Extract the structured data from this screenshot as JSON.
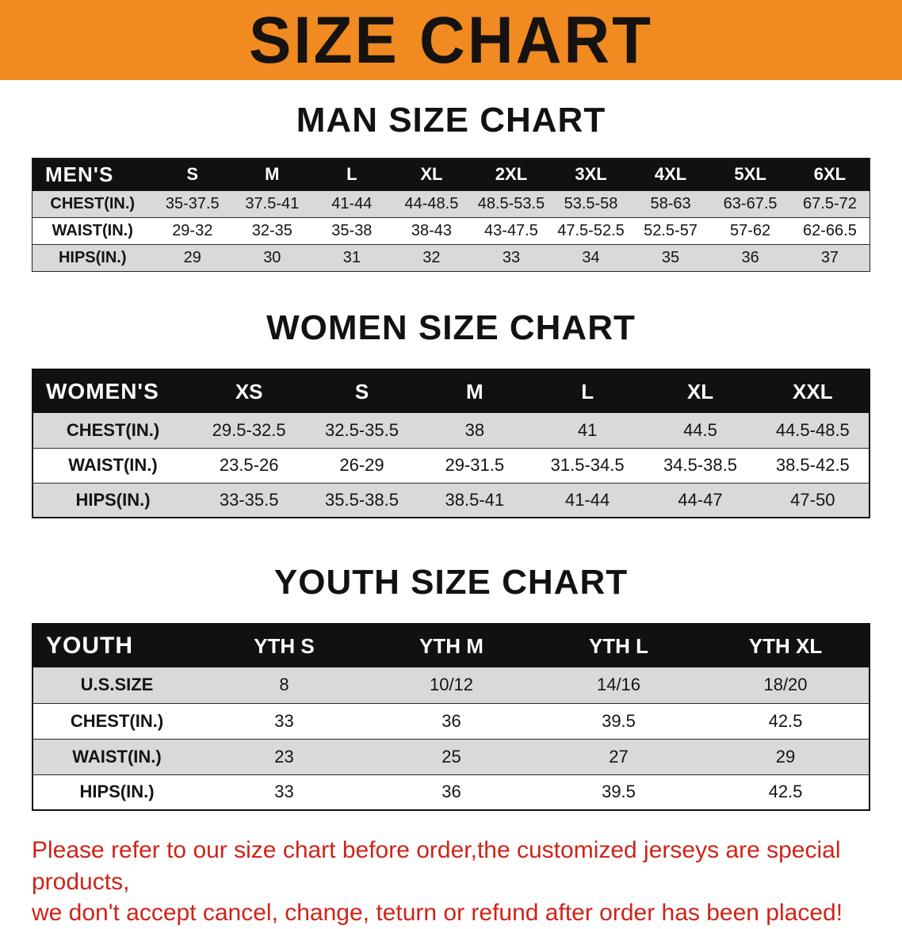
{
  "colors": {
    "banner_bg": "#F08A21",
    "banner_text": "#161210",
    "table_header_bg": "#111111",
    "table_header_text": "#ffffff",
    "stripe_bg": "#d9d9d9",
    "disclaimer_text": "#d02318"
  },
  "banner": {
    "title": "SIZE CHART"
  },
  "sections": [
    {
      "heading": "MAN SIZE CHART",
      "header_label": "MEN'S",
      "columns": [
        "S",
        "M",
        "L",
        "XL",
        "2XL",
        "3XL",
        "4XL",
        "5XL",
        "6XL"
      ],
      "rows": [
        {
          "label": "CHEST(IN.)",
          "values": [
            "35-37.5",
            "37.5-41",
            "41-44",
            "44-48.5",
            "48.5-53.5",
            "53.5-58",
            "58-63",
            "63-67.5",
            "67.5-72"
          ]
        },
        {
          "label": "WAIST(IN.)",
          "values": [
            "29-32",
            "32-35",
            "35-38",
            "38-43",
            "43-47.5",
            "47.5-52.5",
            "52.5-57",
            "57-62",
            "62-66.5"
          ]
        },
        {
          "label": "HIPS(IN.)",
          "values": [
            "29",
            "30",
            "31",
            "32",
            "33",
            "34",
            "35",
            "36",
            "37"
          ]
        }
      ]
    },
    {
      "heading": "WOMEN SIZE CHART",
      "header_label": "WOMEN'S",
      "columns": [
        "XS",
        "S",
        "M",
        "L",
        "XL",
        "XXL"
      ],
      "rows": [
        {
          "label": "CHEST(IN.)",
          "values": [
            "29.5-32.5",
            "32.5-35.5",
            "38",
            "41",
            "44.5",
            "44.5-48.5"
          ]
        },
        {
          "label": "WAIST(IN.)",
          "values": [
            "23.5-26",
            "26-29",
            "29-31.5",
            "31.5-34.5",
            "34.5-38.5",
            "38.5-42.5"
          ]
        },
        {
          "label": "HIPS(IN.)",
          "values": [
            "33-35.5",
            "35.5-38.5",
            "38.5-41",
            "41-44",
            "44-47",
            "47-50"
          ]
        }
      ]
    },
    {
      "heading": "YOUTH SIZE CHART",
      "header_label": "YOUTH",
      "columns": [
        "YTH S",
        "YTH M",
        "YTH L",
        "YTH XL"
      ],
      "rows": [
        {
          "label": "U.S.SIZE",
          "values": [
            "8",
            "10/12",
            "14/16",
            "18/20"
          ]
        },
        {
          "label": "CHEST(IN.)",
          "values": [
            "33",
            "36",
            "39.5",
            "42.5"
          ]
        },
        {
          "label": "WAIST(IN.)",
          "values": [
            "23",
            "25",
            "27",
            "29"
          ]
        },
        {
          "label": "HIPS(IN.)",
          "values": [
            "33",
            "36",
            "39.5",
            "42.5"
          ]
        }
      ]
    }
  ],
  "disclaimer": {
    "line1": "Please refer to our size chart before order,the customized jerseys are special products,",
    "line2": "we don't accept cancel, change, teturn or refund after order has been placed!"
  }
}
